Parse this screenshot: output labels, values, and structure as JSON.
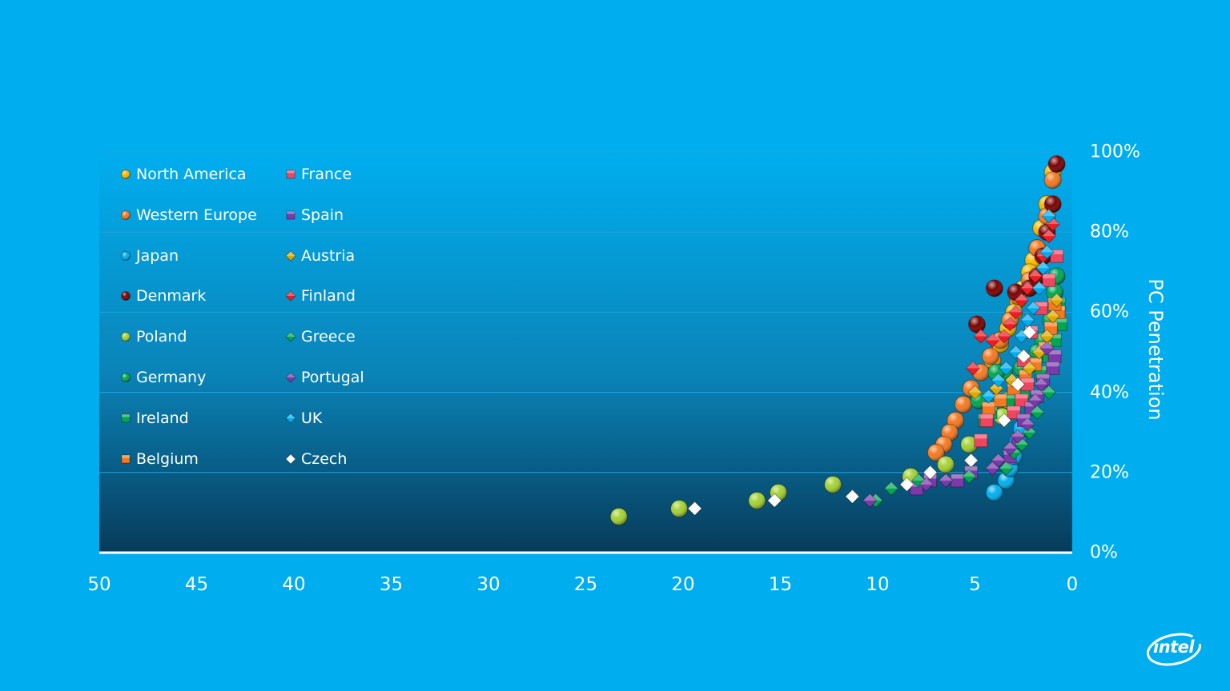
{
  "slide": {
    "background": "#00aeef"
  },
  "logo": {
    "text": "intel"
  },
  "chart_data": {
    "type": "scatter",
    "title": "",
    "xlabel": "",
    "ylabel": "PC Penetration",
    "xlim": [
      50,
      0
    ],
    "ylim": [
      0,
      100
    ],
    "x_reversed": true,
    "x_ticks": [
      "50",
      "45",
      "40",
      "35",
      "30",
      "25",
      "20",
      "15",
      "10",
      "5",
      "0"
    ],
    "y_ticks": [
      "0%",
      "20%",
      "40%",
      "60%",
      "80%",
      "100%"
    ],
    "y_grid": [
      20,
      40,
      60,
      80,
      100
    ],
    "legend_position": "top-left",
    "series": [
      {
        "name": "North America",
        "color": "#f9b700",
        "marker": "circle",
        "points": [
          [
            1.0,
            95
          ],
          [
            1.3,
            87
          ],
          [
            1.6,
            81
          ],
          [
            1.8,
            76
          ],
          [
            2.0,
            73
          ],
          [
            2.2,
            70
          ],
          [
            2.5,
            66
          ],
          [
            2.8,
            63
          ],
          [
            3.0,
            60
          ],
          [
            3.3,
            56
          ],
          [
            3.7,
            52
          ],
          [
            4.1,
            48
          ]
        ]
      },
      {
        "name": "Western Europe",
        "color": "#f47920",
        "marker": "circle",
        "points": [
          [
            1.0,
            93
          ],
          [
            1.3,
            84
          ],
          [
            1.8,
            76
          ],
          [
            2.2,
            68
          ],
          [
            2.8,
            64
          ],
          [
            3.2,
            58
          ],
          [
            3.7,
            53
          ],
          [
            4.2,
            49
          ],
          [
            4.7,
            45
          ],
          [
            5.2,
            41
          ],
          [
            5.6,
            37
          ],
          [
            6.0,
            33
          ],
          [
            6.3,
            30
          ],
          [
            6.6,
            27
          ],
          [
            7.0,
            25
          ]
        ]
      },
      {
        "name": "Japan",
        "color": "#00aeef",
        "marker": "circle",
        "points": [
          [
            4.0,
            15
          ],
          [
            3.4,
            18
          ],
          [
            3.2,
            21
          ],
          [
            3.0,
            24
          ],
          [
            2.8,
            28
          ],
          [
            2.6,
            31
          ]
        ]
      },
      {
        "name": "Denmark",
        "color": "#7a0000",
        "marker": "circle",
        "points": [
          [
            0.8,
            97
          ],
          [
            1.0,
            87
          ],
          [
            1.3,
            80
          ],
          [
            1.5,
            74
          ],
          [
            1.8,
            69
          ],
          [
            2.2,
            66
          ],
          [
            2.9,
            65
          ],
          [
            4.0,
            66
          ],
          [
            4.9,
            57
          ]
        ]
      },
      {
        "name": "Poland",
        "color": "#a5d133",
        "marker": "circle",
        "points": [
          [
            23.3,
            9
          ],
          [
            20.2,
            11
          ],
          [
            16.2,
            13
          ],
          [
            15.1,
            15
          ],
          [
            12.3,
            17
          ],
          [
            8.3,
            19
          ],
          [
            6.5,
            22
          ],
          [
            5.3,
            27
          ],
          [
            3.6,
            34
          ],
          [
            3.3,
            38
          ],
          [
            2.8,
            41
          ],
          [
            2.5,
            46
          ]
        ]
      },
      {
        "name": "Germany",
        "color": "#00a651",
        "marker": "circle",
        "points": [
          [
            0.8,
            69
          ],
          [
            0.9,
            65
          ],
          [
            1.1,
            58
          ],
          [
            1.5,
            53
          ],
          [
            1.8,
            50
          ],
          [
            2.2,
            47
          ],
          [
            2.6,
            46
          ],
          [
            3.5,
            45
          ],
          [
            3.9,
            45
          ],
          [
            4.8,
            38
          ]
        ]
      },
      {
        "name": "Ireland",
        "color": "#00a651",
        "marker": "square",
        "points": [
          [
            0.6,
            57
          ],
          [
            0.7,
            62
          ],
          [
            0.9,
            53
          ],
          [
            1.2,
            49
          ],
          [
            1.6,
            45
          ],
          [
            2.5,
            40
          ],
          [
            3.3,
            38
          ],
          [
            4.2,
            35
          ],
          [
            4.5,
            33
          ]
        ]
      },
      {
        "name": "Belgium",
        "color": "#f47920",
        "marker": "square",
        "points": [
          [
            0.7,
            60
          ],
          [
            0.9,
            62
          ],
          [
            1.1,
            56
          ],
          [
            1.4,
            51
          ],
          [
            1.9,
            47
          ],
          [
            2.4,
            44
          ],
          [
            3.0,
            41
          ],
          [
            3.7,
            38
          ],
          [
            4.3,
            36
          ]
        ]
      },
      {
        "name": "France",
        "color": "#ef4560",
        "marker": "square",
        "points": [
          [
            0.8,
            74
          ],
          [
            1.2,
            68
          ],
          [
            1.6,
            61
          ],
          [
            2.1,
            55
          ],
          [
            2.5,
            48
          ],
          [
            2.3,
            42
          ],
          [
            2.6,
            38
          ],
          [
            3.0,
            35
          ],
          [
            4.4,
            33
          ],
          [
            4.7,
            28
          ]
        ]
      },
      {
        "name": "Spain",
        "color": "#7a3aab",
        "marker": "square",
        "points": [
          [
            0.9,
            49
          ],
          [
            1.0,
            46
          ],
          [
            1.5,
            43
          ],
          [
            1.8,
            39
          ],
          [
            2.1,
            36
          ],
          [
            2.5,
            33
          ],
          [
            2.8,
            28
          ],
          [
            3.2,
            24
          ],
          [
            5.2,
            20
          ],
          [
            5.9,
            18
          ],
          [
            7.3,
            18
          ],
          [
            8.0,
            16
          ]
        ]
      },
      {
        "name": "Austria",
        "color": "#e0a800",
        "marker": "diamond",
        "points": [
          [
            0.8,
            63
          ],
          [
            1.0,
            59
          ],
          [
            1.3,
            54
          ],
          [
            1.7,
            50
          ],
          [
            2.2,
            46
          ],
          [
            3.1,
            43
          ],
          [
            3.9,
            41
          ],
          [
            5.0,
            40
          ]
        ]
      },
      {
        "name": "Finland",
        "color": "#ee1c25",
        "marker": "diamond",
        "points": [
          [
            1.0,
            82
          ],
          [
            1.2,
            79
          ],
          [
            1.5,
            74
          ],
          [
            1.9,
            69
          ],
          [
            2.3,
            66
          ],
          [
            2.6,
            63
          ],
          [
            2.9,
            60
          ],
          [
            3.2,
            57
          ],
          [
            3.5,
            54
          ],
          [
            4.1,
            53
          ],
          [
            4.7,
            54
          ],
          [
            5.1,
            46
          ]
        ]
      },
      {
        "name": "Greece",
        "color": "#00a651",
        "marker": "diamond",
        "points": [
          [
            1.2,
            40
          ],
          [
            1.8,
            35
          ],
          [
            2.2,
            30
          ],
          [
            2.6,
            27
          ],
          [
            3.0,
            25
          ],
          [
            3.4,
            21
          ],
          [
            5.3,
            19
          ],
          [
            7.9,
            18
          ],
          [
            9.3,
            16
          ],
          [
            10.1,
            13
          ]
        ]
      },
      {
        "name": "Portugal",
        "color": "#7a3aab",
        "marker": "diamond",
        "points": [
          [
            1.3,
            51
          ],
          [
            1.6,
            42
          ],
          [
            1.9,
            38
          ],
          [
            2.3,
            32
          ],
          [
            2.8,
            29
          ],
          [
            3.2,
            26
          ],
          [
            3.8,
            23
          ],
          [
            4.1,
            21
          ],
          [
            6.5,
            18
          ],
          [
            7.5,
            17
          ],
          [
            10.4,
            13
          ]
        ]
      },
      {
        "name": "UK",
        "color": "#00aeef",
        "marker": "diamond",
        "points": [
          [
            1.2,
            84
          ],
          [
            1.3,
            75
          ],
          [
            1.5,
            71
          ],
          [
            1.7,
            66
          ],
          [
            2.0,
            61
          ],
          [
            2.3,
            58
          ],
          [
            2.6,
            54
          ],
          [
            2.9,
            50
          ],
          [
            3.4,
            46
          ],
          [
            3.8,
            43
          ],
          [
            4.3,
            39
          ]
        ]
      },
      {
        "name": "Czech",
        "color": "#ffffff",
        "marker": "diamond",
        "points": [
          [
            2.2,
            55
          ],
          [
            2.5,
            49
          ],
          [
            2.8,
            42
          ],
          [
            3.5,
            33
          ],
          [
            5.2,
            23
          ],
          [
            7.3,
            20
          ],
          [
            8.5,
            17
          ],
          [
            11.3,
            14
          ],
          [
            15.3,
            13
          ],
          [
            19.4,
            11
          ]
        ]
      }
    ]
  }
}
